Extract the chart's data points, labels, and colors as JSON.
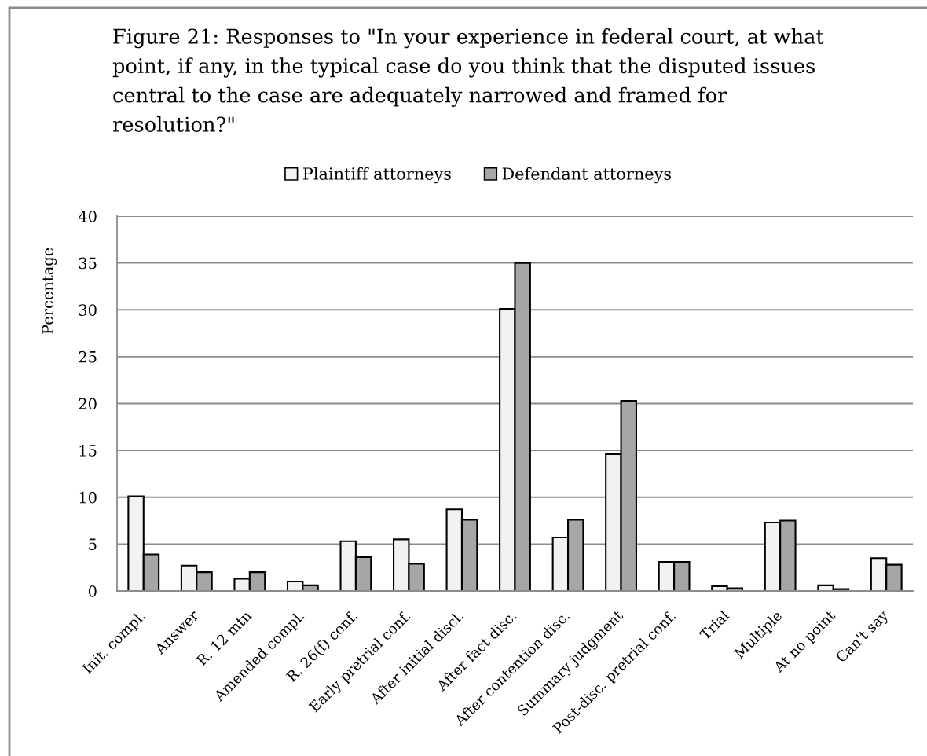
{
  "chart_data": {
    "type": "bar",
    "title": "Figure 21: Responses to \"In your experience in federal court, at what\npoint, if any, in the typical case do you think that the disputed issues\ncentral to the case are adequately narrowed and framed for\nresolution?\"",
    "ylabel": "Percentage",
    "categories": [
      "Init. compl.",
      "Answer",
      "R. 12 mtn",
      "Amended compl.",
      "R. 26(f) conf.",
      "Early pretrial conf.",
      "After initial discl.",
      "After fact disc.",
      "After contention disc.",
      "Summary judgment",
      "Post-disc. pretrial conf.",
      "Trial",
      "Multiple",
      "At no point",
      "Can't say"
    ],
    "series": [
      {
        "name": "Plaintiff attorneys",
        "color": "#f2f2f2",
        "values": [
          10.1,
          2.7,
          1.3,
          1.0,
          5.3,
          5.5,
          8.7,
          30.1,
          5.7,
          14.6,
          3.1,
          0.5,
          7.3,
          0.6,
          3.5
        ]
      },
      {
        "name": "Defendant attorneys",
        "color": "#a6a6a6",
        "values": [
          3.9,
          2.0,
          2.0,
          0.6,
          3.6,
          2.9,
          7.6,
          35.0,
          7.6,
          20.3,
          3.1,
          0.3,
          7.5,
          0.2,
          2.8
        ]
      }
    ],
    "ylim": [
      0,
      40
    ],
    "yticks": [
      0,
      5,
      10,
      15,
      20,
      25,
      30,
      35,
      40
    ],
    "grid": "y",
    "legend": "top"
  }
}
